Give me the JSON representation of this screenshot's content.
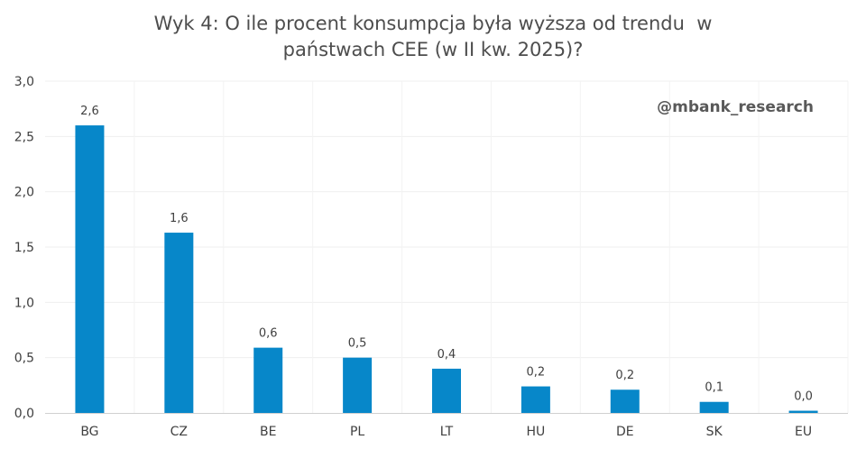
{
  "chart_data": {
    "type": "bar",
    "title_lines": [
      "Wyk 4: O ile procent konsumpcja była wyższa od trendu  w",
      "państwach CEE (w II kw. 2025)?"
    ],
    "watermark": "@mbank_research",
    "categories": [
      "BG",
      "CZ",
      "BE",
      "PL",
      "LT",
      "HU",
      "DE",
      "SK",
      "EU"
    ],
    "values": [
      2.6,
      1.63,
      0.59,
      0.5,
      0.4,
      0.24,
      0.21,
      0.1,
      0.02
    ],
    "data_labels": [
      "2,6",
      "1,6",
      "0,6",
      "0,5",
      "0,4",
      "0,2",
      "0,2",
      "0,1",
      "0,0"
    ],
    "ylim": [
      0,
      3
    ],
    "yticks": [
      0,
      0.5,
      1,
      1.5,
      2,
      2.5,
      3
    ],
    "ytick_labels": [
      "0,0",
      "0,5",
      "1,0",
      "1,5",
      "2,0",
      "2,5",
      "3,0"
    ],
    "bar_color": "#0787c9",
    "grid": true
  }
}
